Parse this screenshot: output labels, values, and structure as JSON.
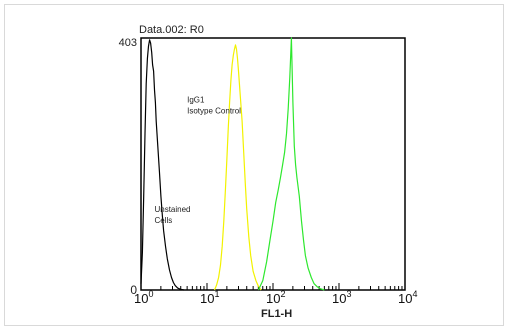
{
  "chart_data": {
    "type": "line",
    "title": "Data.002: R0",
    "xlabel": "FL1-H",
    "ylabel": "",
    "xscale": "log",
    "xlim": [
      1,
      10000
    ],
    "ylim": [
      0,
      403
    ],
    "y_tick_labels": [
      "0",
      "403"
    ],
    "x_tick_labels": [
      {
        "base": "10",
        "exp": "0"
      },
      {
        "base": "10",
        "exp": "1"
      },
      {
        "base": "10",
        "exp": "2"
      },
      {
        "base": "10",
        "exp": "3"
      },
      {
        "base": "10",
        "exp": "4"
      }
    ],
    "grid": false,
    "series": [
      {
        "name": "Unstained Cells",
        "color": "#000000",
        "x": [
          1.0,
          1.05,
          1.1,
          1.15,
          1.2,
          1.25,
          1.3,
          1.35,
          1.4,
          1.45,
          1.5,
          1.55,
          1.6,
          1.65,
          1.7,
          1.8,
          1.9,
          2.0,
          2.1,
          2.2,
          2.35,
          2.5,
          2.7,
          2.9,
          3.1,
          3.3,
          3.6,
          4.0,
          4.5
        ],
        "y": [
          10,
          60,
          150,
          250,
          330,
          370,
          390,
          400,
          395,
          380,
          360,
          350,
          320,
          300,
          270,
          230,
          190,
          150,
          120,
          95,
          70,
          50,
          32,
          20,
          12,
          7,
          3,
          1,
          0
        ]
      },
      {
        "name": "IgG1 Isotype Control",
        "color": "#f2f200",
        "x": [
          13,
          14,
          15,
          16,
          17,
          18,
          19,
          20,
          21,
          22,
          23,
          24,
          25,
          26,
          27,
          28,
          29,
          30,
          32,
          34,
          36,
          38,
          40,
          43,
          46,
          50,
          55,
          60,
          66
        ],
        "y": [
          0,
          8,
          20,
          40,
          70,
          110,
          160,
          210,
          260,
          300,
          335,
          360,
          375,
          385,
          392,
          385,
          370,
          350,
          310,
          270,
          220,
          170,
          130,
          85,
          55,
          30,
          15,
          6,
          0
        ]
      },
      {
        "name": "",
        "color": "#2ee82e",
        "x": [
          60,
          70,
          80,
          90,
          100,
          110,
          120,
          130,
          140,
          150,
          160,
          170,
          180,
          190,
          200,
          210,
          220,
          230,
          250,
          270,
          290,
          310,
          340,
          380,
          420,
          470,
          520,
          600
        ],
        "y": [
          0,
          15,
          45,
          80,
          110,
          140,
          160,
          180,
          200,
          220,
          250,
          290,
          340,
          403,
          300,
          230,
          200,
          180,
          150,
          110,
          80,
          55,
          35,
          20,
          10,
          5,
          2,
          0
        ]
      }
    ],
    "annotations": [
      {
        "lines": [
          "Unstained",
          "Cells"
        ],
        "x": 1.6,
        "y": 125
      },
      {
        "lines": [
          "IgG1",
          "Isotype Control"
        ],
        "x": 5,
        "y": 300
      }
    ]
  }
}
